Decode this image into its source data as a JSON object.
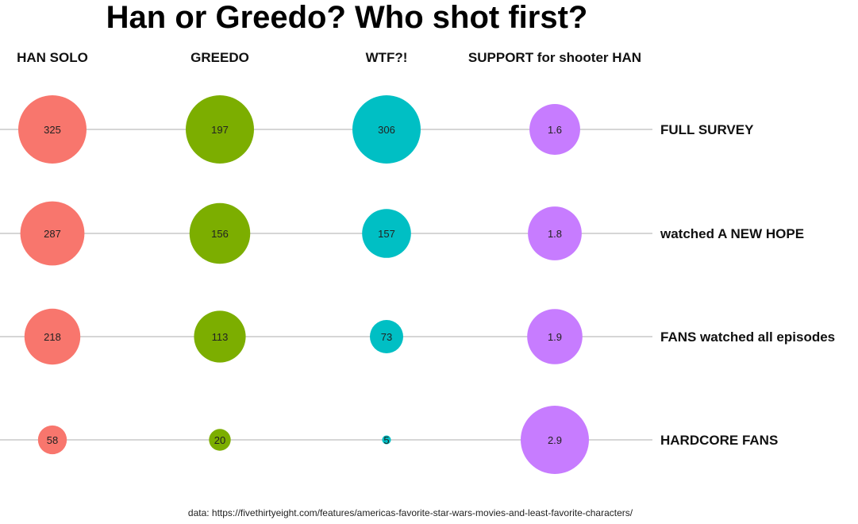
{
  "chart_data": {
    "type": "bubble",
    "title": "Han or Greedo? Who shot first?",
    "columns": [
      "HAN SOLO",
      "GREEDO",
      "WTF?!",
      "SUPPORT for shooter HAN"
    ],
    "rows": [
      "FULL SURVEY",
      "watched A NEW HOPE",
      "FANS watched all episodes",
      "HARDCORE FANS"
    ],
    "series": [
      {
        "name": "HAN SOLO",
        "values": [
          325,
          287,
          218,
          58
        ],
        "labels": [
          "325",
          "287",
          "218",
          "58"
        ],
        "color": "#F8766D"
      },
      {
        "name": "GREEDO",
        "values": [
          197,
          156,
          113,
          20
        ],
        "labels": [
          "197",
          "156",
          "113",
          "20"
        ],
        "color": "#7CAE00"
      },
      {
        "name": "WTF?!",
        "values": [
          306,
          157,
          73,
          5
        ],
        "labels": [
          "306",
          "157",
          "73",
          "5"
        ],
        "color": "#00BFC4"
      },
      {
        "name": "SUPPORT for shooter HAN",
        "values": [
          1.6,
          1.8,
          1.9,
          2.9
        ],
        "labels": [
          "1.6",
          "1.8",
          "1.9",
          "2.9"
        ],
        "color": "#C77CFF"
      }
    ],
    "caption": "data: https://fivethirtyeight.com/features/americas-favorite-star-wars-movies-and-least-favorite-characters/",
    "grid": false,
    "legend": "none"
  }
}
